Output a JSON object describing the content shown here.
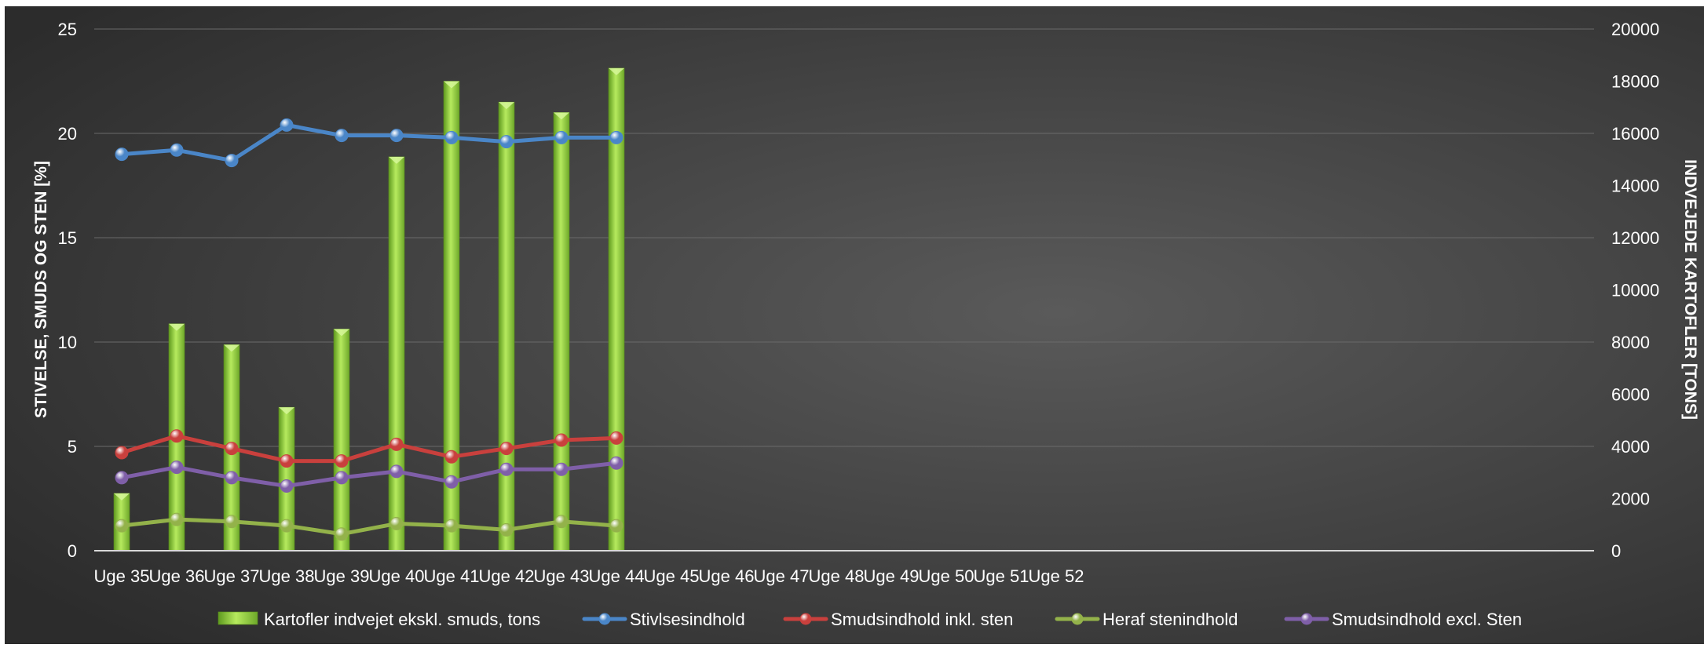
{
  "chart_data": {
    "type": "bar",
    "categories": [
      "Uge 35",
      "Uge 36",
      "Uge 37",
      "Uge 38",
      "Uge 39",
      "Uge 40",
      "Uge 41",
      "Uge 42",
      "Uge 43",
      "Uge 44",
      "Uge 45",
      "Uge 46",
      "Uge 47",
      "Uge 48",
      "Uge 49",
      "Uge 50",
      "Uge 51",
      "Uge 52"
    ],
    "title": "",
    "ylabel_left": "STIVELSE, SMUDS OG STEN [%]",
    "ylabel_right": "INDVEJEDE KARTOFLER [TONS]",
    "ylim_left": [
      0,
      25
    ],
    "ylim_right": [
      0,
      20000
    ],
    "yticks_left": [
      "0",
      "5",
      "10",
      "15",
      "20",
      "25"
    ],
    "yticks_right": [
      "0",
      "2000",
      "4000",
      "6000",
      "8000",
      "10000",
      "12000",
      "14000",
      "16000",
      "18000",
      "20000"
    ],
    "grid": true,
    "legend_position": "bottom",
    "bar_series": {
      "name": "Kartofler indvejet ekskl. smuds, tons",
      "axis": "right",
      "color": "#8fd13a",
      "values": [
        2200,
        8700,
        7900,
        5500,
        8500,
        15100,
        18000,
        17200,
        16800,
        18500,
        null,
        null,
        null,
        null,
        null,
        null,
        null,
        null
      ]
    },
    "line_series": [
      {
        "name": "Stivlsesindhold",
        "axis": "left",
        "color": "#4a86c8",
        "values": [
          19.0,
          19.2,
          18.7,
          20.4,
          19.9,
          19.9,
          19.8,
          19.6,
          19.8,
          19.8,
          null,
          null,
          null,
          null,
          null,
          null,
          null,
          null
        ]
      },
      {
        "name": "Smudsindhold inkl. sten",
        "axis": "left",
        "color": "#c9403d",
        "values": [
          4.7,
          5.5,
          4.9,
          4.3,
          4.3,
          5.1,
          4.5,
          4.9,
          5.3,
          5.4,
          null,
          null,
          null,
          null,
          null,
          null,
          null,
          null
        ]
      },
      {
        "name": "Heraf stenindhold",
        "axis": "left",
        "color": "#93b24a",
        "values": [
          1.2,
          1.5,
          1.4,
          1.2,
          0.8,
          1.3,
          1.2,
          1.0,
          1.4,
          1.2,
          null,
          null,
          null,
          null,
          null,
          null,
          null,
          null
        ]
      },
      {
        "name": "Smudsindhold excl. Sten",
        "axis": "left",
        "color": "#7f5fa8",
        "values": [
          3.5,
          4.0,
          3.5,
          3.1,
          3.5,
          3.8,
          3.3,
          3.9,
          3.9,
          4.2,
          null,
          null,
          null,
          null,
          null,
          null,
          null,
          null
        ]
      }
    ]
  }
}
